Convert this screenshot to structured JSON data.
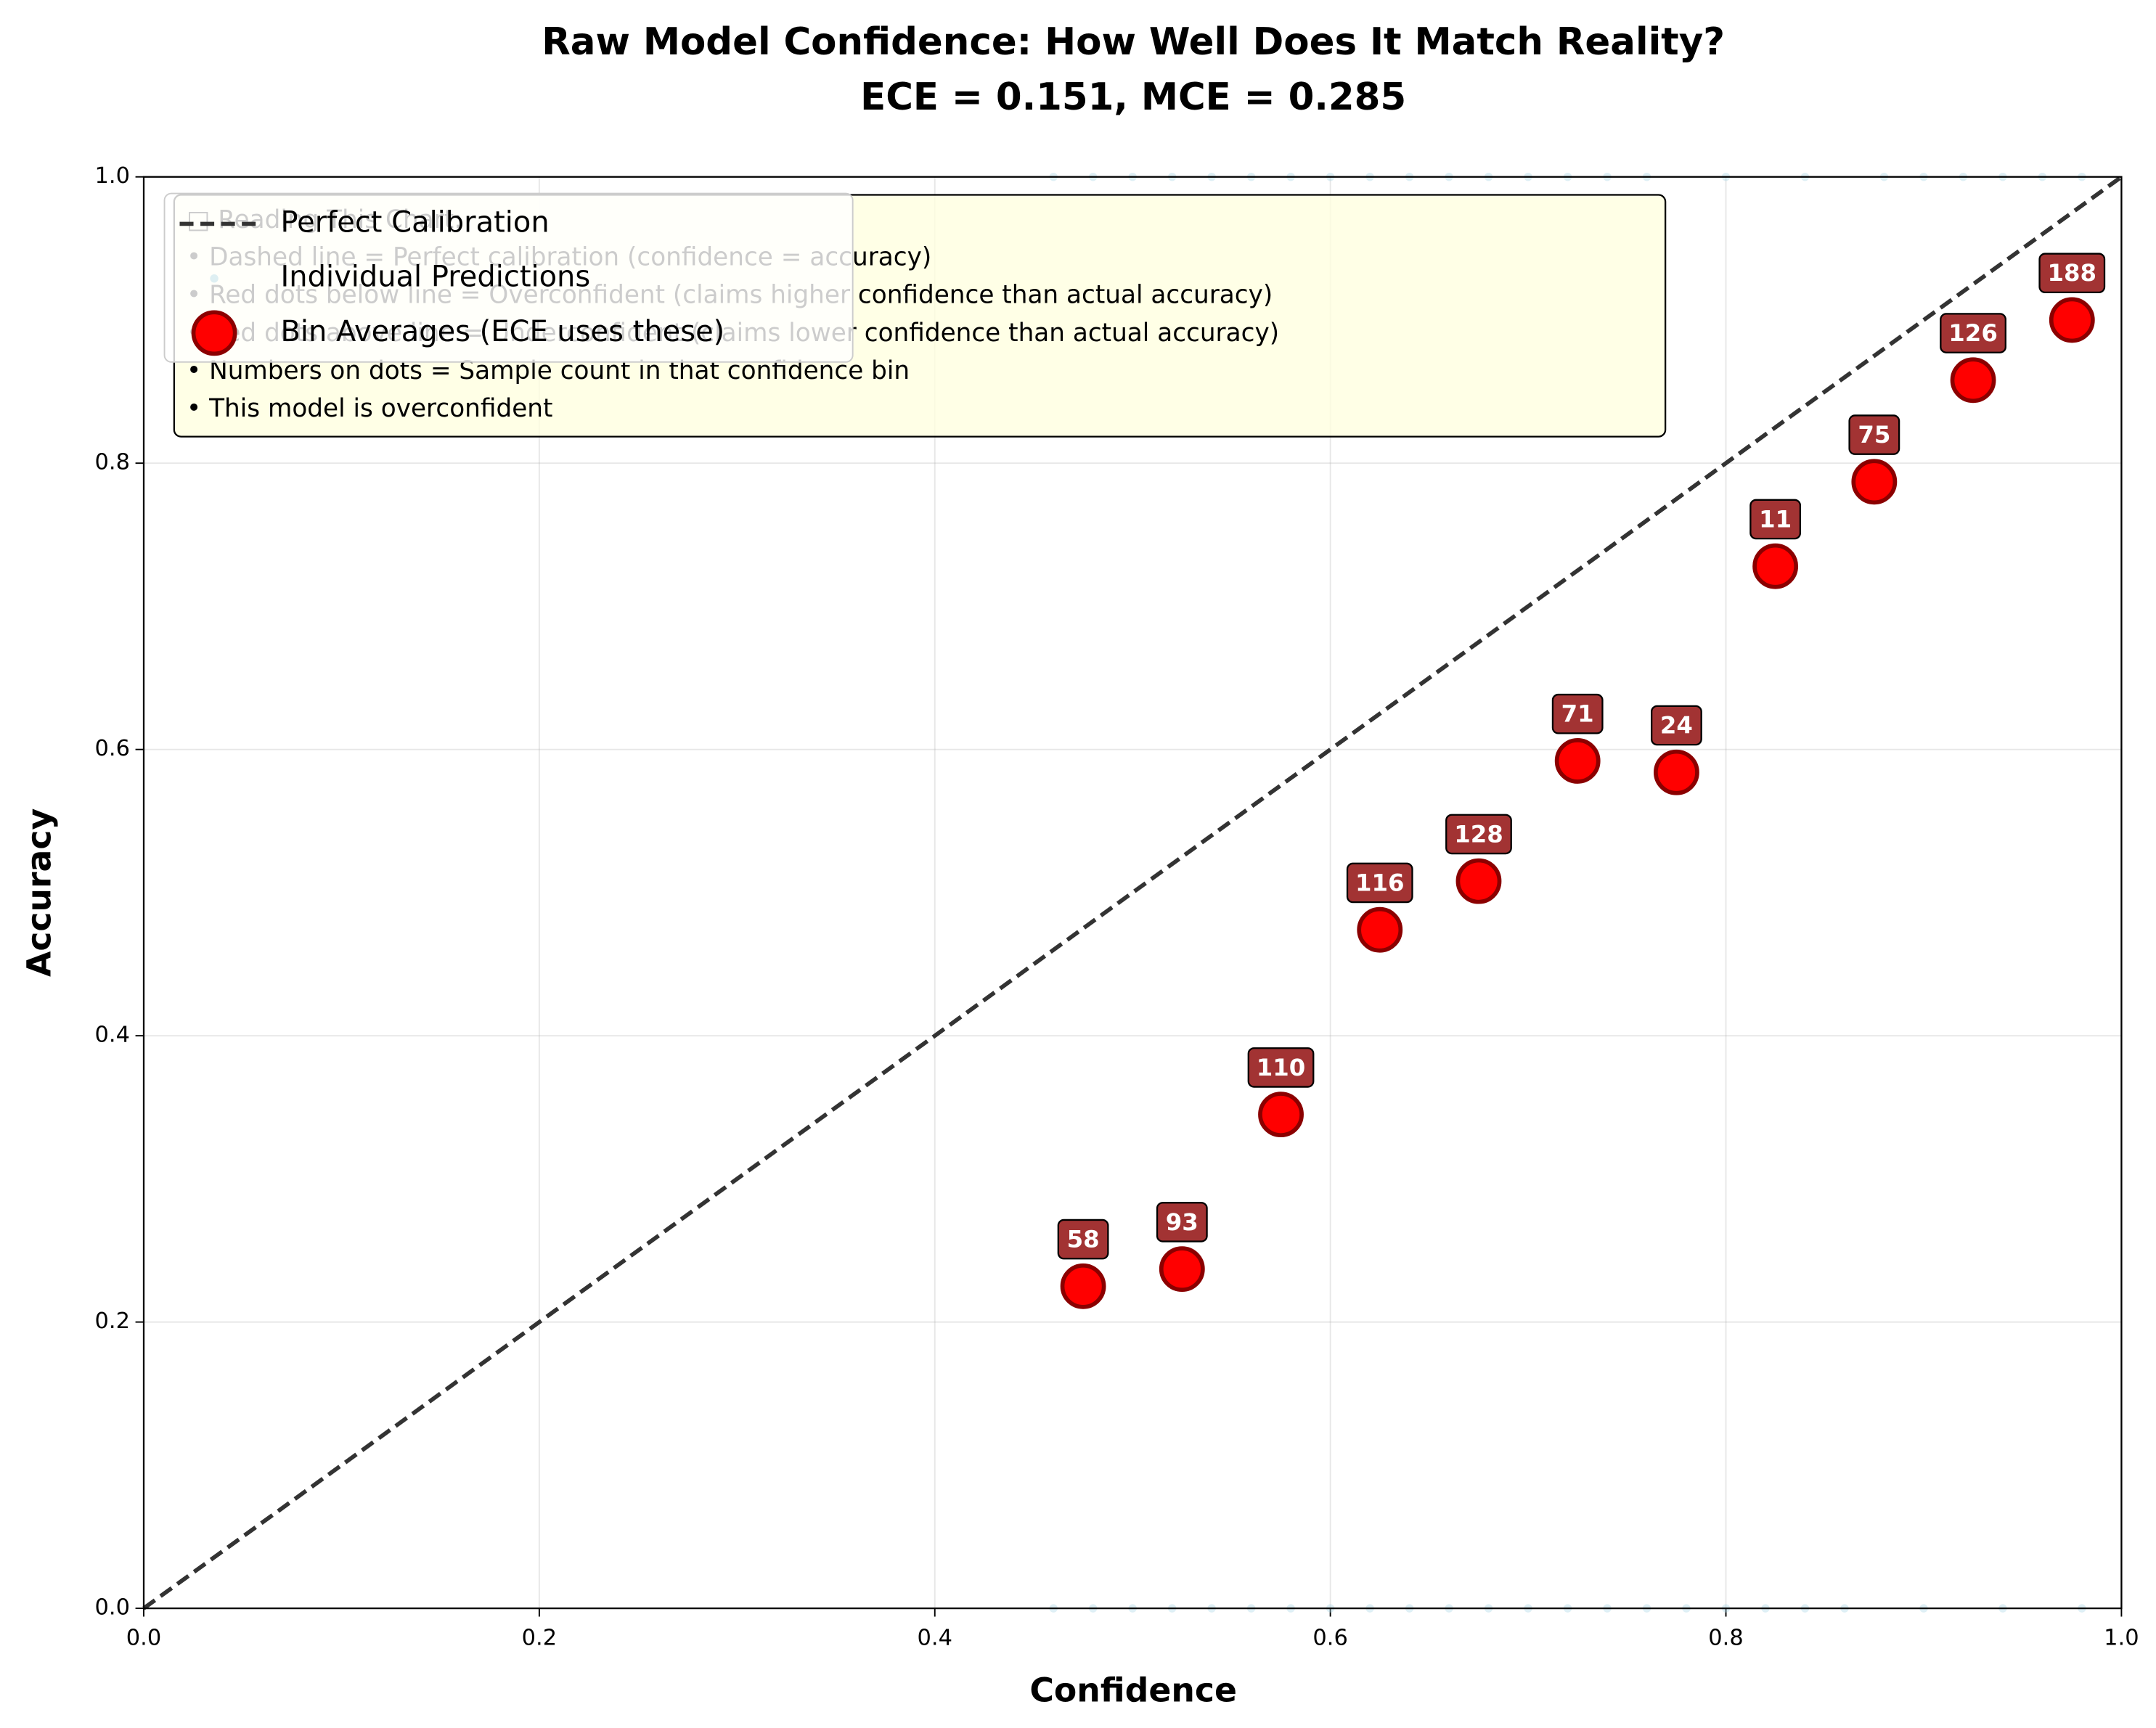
{
  "chart_data": {
    "type": "scatter",
    "title": "Raw Model Confidence: How Well Does It Match Reality?",
    "subtitle": "ECE = 0.151, MCE = 0.285",
    "xlabel": "Confidence",
    "ylabel": "Accuracy",
    "xlim": [
      0,
      1
    ],
    "ylim": [
      0,
      1
    ],
    "xticks": [
      {
        "value": 0,
        "label": "0.0"
      },
      0.2,
      0.4,
      0.6,
      0.8,
      {
        "value": 1,
        "label": "1.0"
      }
    ],
    "yticks": [
      {
        "value": 0,
        "label": "0.0"
      },
      0.2,
      0.4,
      0.6,
      0.8,
      {
        "value": 1,
        "label": "1.0"
      }
    ],
    "grid": true,
    "legend": "upper left",
    "series": [
      {
        "name": "Perfect Calibration",
        "type": "line",
        "color": "#333333",
        "x": [
          0,
          1
        ],
        "values": [
          0,
          1
        ]
      },
      {
        "name": "Individual Predictions",
        "type": "scatter",
        "color": "#add8e6",
        "x": [
          0.46,
          0.48,
          0.5,
          0.52,
          0.54,
          0.56,
          0.58,
          0.6,
          0.62,
          0.64,
          0.66,
          0.68,
          0.7,
          0.72,
          0.74,
          0.76,
          0.8,
          0.84,
          0.88,
          0.9,
          0.92,
          0.94,
          0.96,
          0.98,
          0.46,
          0.48,
          0.5,
          0.52,
          0.54,
          0.56,
          0.58,
          0.6,
          0.62,
          0.64,
          0.66,
          0.68,
          0.7,
          0.72,
          0.74,
          0.76,
          0.78,
          0.8,
          0.82,
          0.84,
          0.86,
          0.9,
          0.94,
          0.98
        ],
        "values": [
          1,
          1,
          1,
          1,
          1,
          1,
          1,
          1,
          1,
          1,
          1,
          1,
          1,
          1,
          1,
          1,
          1,
          1,
          1,
          1,
          1,
          1,
          1,
          1,
          0,
          0,
          0,
          0,
          0,
          0,
          0,
          0,
          0,
          0,
          0,
          0,
          0,
          0,
          0,
          0,
          0,
          0,
          0,
          0,
          0,
          0,
          0,
          0
        ]
      },
      {
        "name": "Bin Averages (ECE uses these)",
        "type": "scatter",
        "color": "#ff0000",
        "edgecolor": "#8b0000",
        "x": [
          0.475,
          0.525,
          0.575,
          0.625,
          0.675,
          0.725,
          0.775,
          0.825,
          0.875,
          0.925,
          0.975
        ],
        "values": [
          0.225,
          0.237,
          0.345,
          0.474,
          0.508,
          0.592,
          0.584,
          0.728,
          0.787,
          0.858,
          0.9
        ],
        "counts": [
          58,
          93,
          110,
          116,
          128,
          71,
          24,
          11,
          75,
          126,
          188
        ]
      }
    ],
    "annotation": {
      "title": "□ Reading This Chart:",
      "lines": [
        "• Dashed line = Perfect calibration (confidence = accuracy)",
        "• Red dots below line = Overconfident (claims higher confidence than actual accuracy)",
        "• Red dots above line = Underconfident (claims lower confidence than actual accuracy)",
        "• Numbers on dots = Sample count in that confidence bin",
        "• This model is overconfident"
      ]
    }
  }
}
